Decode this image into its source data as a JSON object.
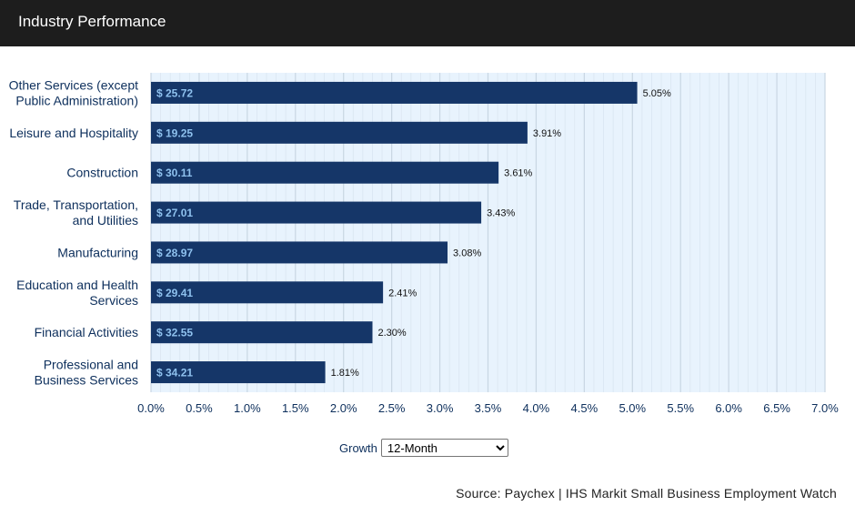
{
  "header": {
    "title": "Industry Performance"
  },
  "chart_data": {
    "type": "bar",
    "orientation": "horizontal",
    "categories": [
      [
        "Other Services (except",
        "Public Administration)"
      ],
      [
        "Leisure and Hospitality"
      ],
      [
        "Construction"
      ],
      [
        "Trade, Transportation,",
        "and Utilities"
      ],
      [
        "Manufacturing"
      ],
      [
        "Education and Health",
        "Services"
      ],
      [
        "Financial Activities"
      ],
      [
        "Professional and",
        "Business Services"
      ]
    ],
    "values": [
      5.05,
      3.91,
      3.61,
      3.43,
      3.08,
      2.41,
      2.3,
      1.81
    ],
    "value_labels": [
      "5.05%",
      "3.91%",
      "3.61%",
      "3.43%",
      "3.08%",
      "2.41%",
      "2.30%",
      "1.81%"
    ],
    "bar_labels": [
      "$ 25.72",
      "$ 19.25",
      "$ 30.11",
      "$ 27.01",
      "$ 28.97",
      "$ 29.41",
      "$ 32.55",
      "$ 34.21"
    ],
    "xlim": [
      0,
      7
    ],
    "x_ticks": [
      "0.0%",
      "0.5%",
      "1.0%",
      "1.5%",
      "2.0%",
      "2.5%",
      "3.0%",
      "3.5%",
      "4.0%",
      "4.5%",
      "5.0%",
      "5.5%",
      "6.0%",
      "6.5%",
      "7.0%"
    ],
    "grid": true,
    "colors": {
      "bar": "#153668",
      "bar_label": "#8ec1ee",
      "plot_background": "#e8f3fd",
      "grid_major": "#c9d6e3",
      "grid_minor": "#dae6f1",
      "axis_text": "#0d2f5c"
    }
  },
  "controls": {
    "growth_label": "Growth",
    "growth_selected": "12-Month"
  },
  "footer": {
    "source": "Source: Paychex | IHS Markit Small Business Employment Watch"
  }
}
